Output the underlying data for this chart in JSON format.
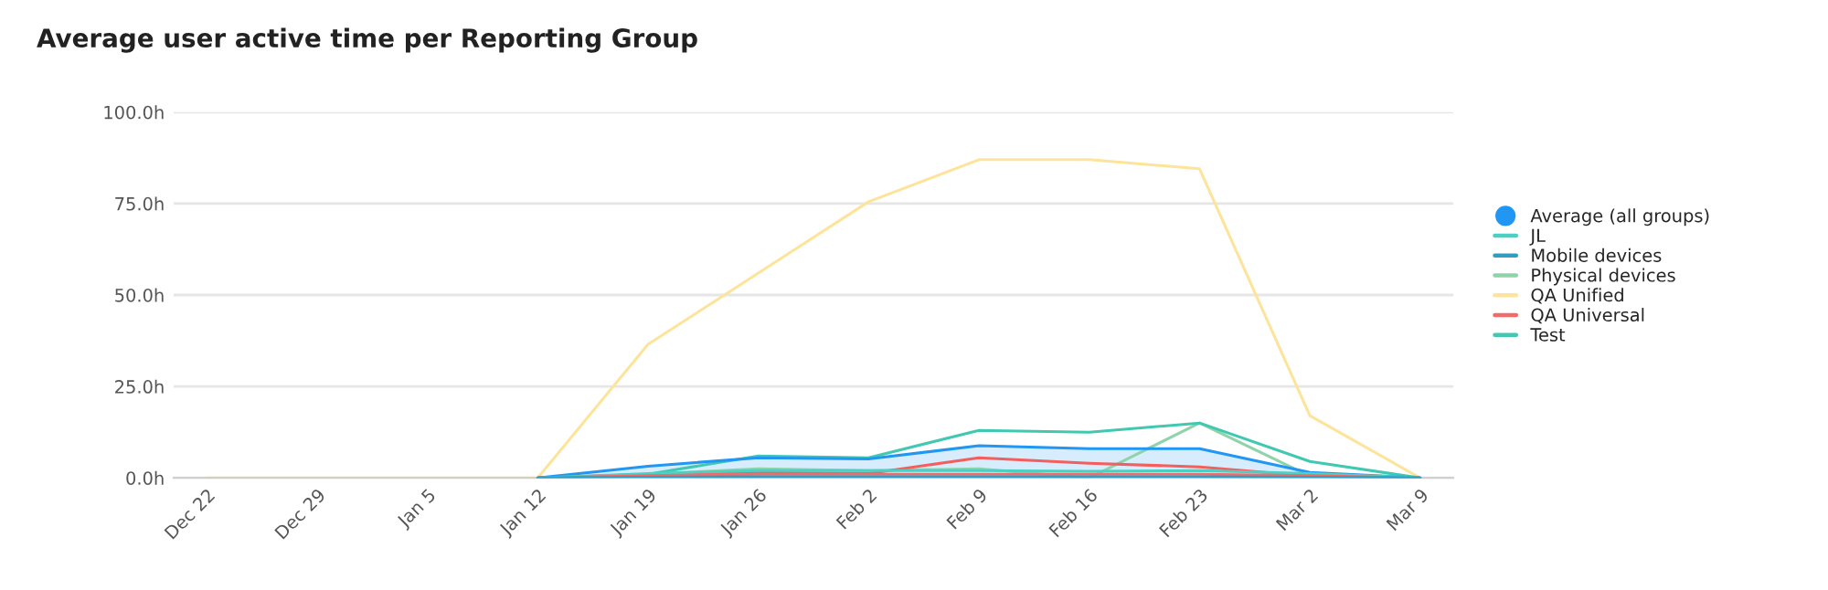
{
  "chart_data": {
    "type": "line",
    "title": "Average user active time per Reporting Group",
    "categories": [
      "Dec 22",
      "Dec 29",
      "Jan 5",
      "Jan 12",
      "Jan 19",
      "Jan 26",
      "Feb 2",
      "Feb 9",
      "Feb 16",
      "Feb 23",
      "Mar 2",
      "Mar 9"
    ],
    "series": [
      {
        "name": "Average (all groups)",
        "type": "area",
        "color": "#2196f3",
        "values": [
          null,
          null,
          null,
          0,
          3.2,
          5.5,
          5.2,
          8.8,
          8.0,
          8.0,
          1.5,
          0
        ]
      },
      {
        "color": "#f25f5c",
        "values": [
          null,
          null,
          null,
          0,
          0.5,
          1.5,
          1.2,
          5.5,
          4,
          3,
          0.5,
          0
        ]
      },
      {
        "name": "JL",
        "color": "#4dd0c4",
        "values": [
          null,
          null,
          null,
          0,
          1.2,
          2.0,
          2.0,
          2.0,
          1.8,
          2.0,
          1.2,
          0
        ]
      },
      {
        "name": "Mobile devices",
        "color": "#2e9fc2",
        "values": [
          null,
          null,
          null,
          0,
          0.2,
          0.3,
          0.3,
          0.3,
          0.3,
          0.3,
          0.2,
          0
        ]
      },
      {
        "name": "Physical devices",
        "color": "#8fd3a8",
        "values": [
          null,
          null,
          null,
          0,
          1,
          2.5,
          2,
          2.5,
          0,
          15,
          0.5,
          0
        ]
      },
      {
        "name": "QA Unified",
        "color": "#fde49a",
        "values": [
          0,
          0,
          0,
          0,
          36.5,
          56,
          75.5,
          87,
          87,
          84.5,
          17,
          0
        ]
      },
      {
        "name": "QA Universal",
        "color": "#f26b6b",
        "values": [
          null,
          null,
          null,
          0,
          0.6,
          1.0,
          1.0,
          1.0,
          1.0,
          1.0,
          0.6,
          0
        ]
      },
      {
        "name": "Test",
        "color": "#40c9b0",
        "values": [
          null,
          null,
          null,
          0,
          1,
          6,
          5.5,
          13,
          12.5,
          15,
          4.5,
          0
        ]
      }
    ],
    "ylim": [
      0,
      100
    ],
    "yticks": [
      {
        "value": 0,
        "label": "0.0h"
      },
      {
        "value": 25,
        "label": "25.0h"
      },
      {
        "value": 50,
        "label": "50.0h"
      },
      {
        "value": 75,
        "label": "75.0h"
      },
      {
        "value": 100,
        "label": "100.0h"
      }
    ],
    "grid": "y",
    "legend": "right"
  }
}
